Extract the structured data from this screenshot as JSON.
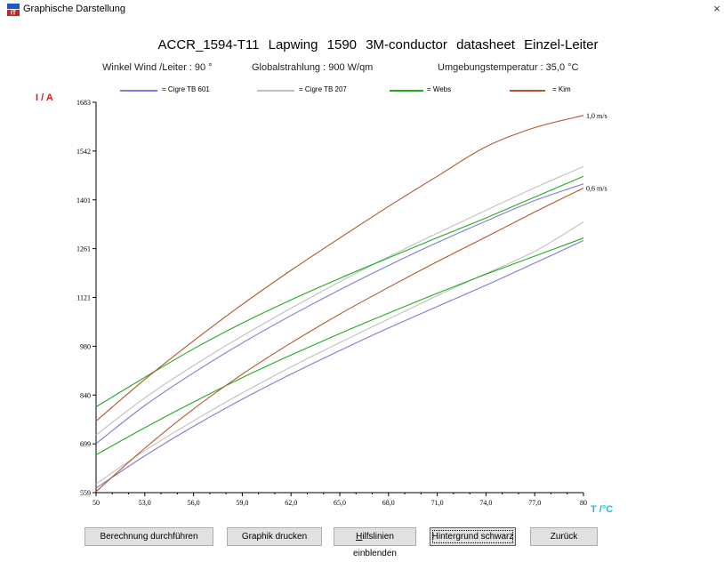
{
  "window": {
    "title": "Graphische Darstellung",
    "close_glyph": "×"
  },
  "header": {
    "title": "ACCR_1594-T11   Lapwing 1590   3M-conductor datasheet   Einzel-Leiter",
    "wind_angle": "Winkel Wind /Leiter : 90 °",
    "radiation": "Globalstrahlung : 900 W/qm",
    "ambient": "Umgebungstemperatur : 35,0 °C"
  },
  "legend": [
    {
      "label": "= Cigre TB 601",
      "color": "#7b7be0"
    },
    {
      "label": "= Cigre TB 207",
      "color": "#c0c0c0"
    },
    {
      "label": "= Webs",
      "color": "#22aa22"
    },
    {
      "label": "= Kim",
      "color": "#b5562a"
    }
  ],
  "buttons": {
    "compute": "Berechnung durchführen",
    "print": "Graphik drucken",
    "helplines_mnemonic": "H",
    "helplines_rest": "ilfslinien einblenden",
    "background": "Hintergrund schwarz",
    "back": "Zurück"
  },
  "chart_data": {
    "type": "line",
    "ylabel": "I / A",
    "xlabel": "T /°C",
    "xlim": [
      50,
      80
    ],
    "ylim": [
      559,
      1683
    ],
    "xticks": [
      "50",
      "53,0",
      "56,0",
      "59,0",
      "62,0",
      "65,0",
      "68,0",
      "71,0",
      "74,0",
      "77,0",
      "80"
    ],
    "yticks": [
      "559",
      "699",
      "840",
      "980",
      "1121",
      "1261",
      "1401",
      "1542",
      "1683"
    ],
    "x": [
      50,
      53,
      56,
      59,
      62,
      65,
      68,
      71,
      74,
      77,
      80
    ],
    "annotations": [
      {
        "text": "1,0 m/s",
        "x": 80,
        "y": 1645
      },
      {
        "text": "0,6 m/s",
        "x": 80,
        "y": 1436
      }
    ],
    "grid": false,
    "legend_position": "top",
    "series": [
      {
        "name": "Cigre TB 601",
        "color": "#7b7be0",
        "wind": "1,0 m/s",
        "values": [
          700,
          810,
          904,
          990,
          1069,
          1143,
          1213,
          1279,
          1341,
          1400,
          1448
        ]
      },
      {
        "name": "Cigre TB 601",
        "color": "#7b7be0",
        "wind": "0,6 m/s",
        "values": [
          572,
          665,
          750,
          828,
          900,
          968,
          1033,
          1095,
          1156,
          1220,
          1285
        ]
      },
      {
        "name": "Cigre TB 207",
        "color": "#c0c0c0",
        "wind": "1,0 m/s",
        "values": [
          725,
          832,
          925,
          1010,
          1090,
          1166,
          1238,
          1306,
          1372,
          1437,
          1498
        ]
      },
      {
        "name": "Cigre TB 207",
        "color": "#c0c0c0",
        "wind": "0,6 m/s",
        "values": [
          584,
          680,
          766,
          846,
          921,
          991,
          1059,
          1126,
          1190,
          1254,
          1338
        ]
      },
      {
        "name": "Webs",
        "color": "#22aa22",
        "wind": "1,0 m/s",
        "values": [
          806,
          891,
          973,
          1047,
          1114,
          1176,
          1235,
          1293,
          1350,
          1410,
          1470
        ]
      },
      {
        "name": "Webs",
        "color": "#22aa22",
        "wind": "0,6 m/s",
        "values": [
          668,
          746,
          820,
          890,
          955,
          1017,
          1076,
          1133,
          1188,
          1240,
          1292
        ]
      },
      {
        "name": "Kim",
        "color": "#b5562a",
        "wind": "1,0 m/s",
        "values": [
          765,
          885,
          996,
          1101,
          1199,
          1292,
          1383,
          1470,
          1555,
          1610,
          1645
        ]
      },
      {
        "name": "Kim",
        "color": "#b5562a",
        "wind": "0,6 m/s",
        "values": [
          562,
          687,
          800,
          900,
          990,
          1073,
          1150,
          1224,
          1295,
          1367,
          1436
        ]
      }
    ]
  }
}
